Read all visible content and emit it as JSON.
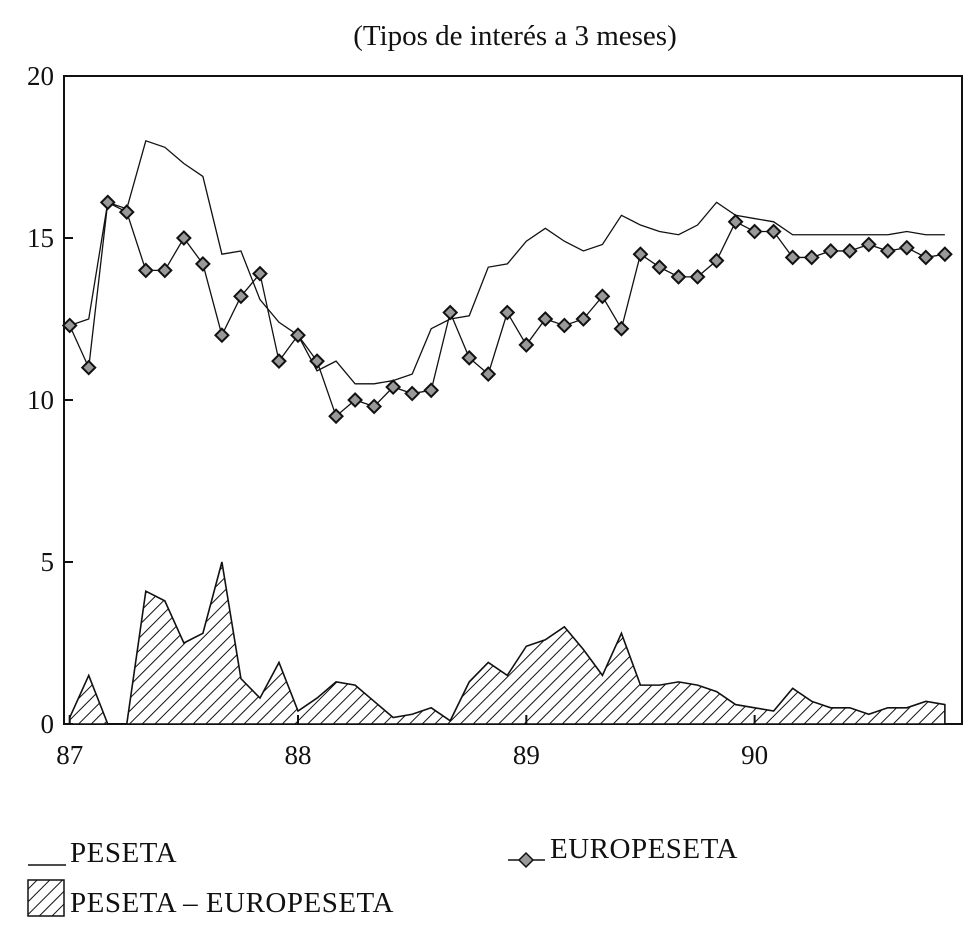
{
  "chart_data": {
    "type": "line",
    "title": "(Tipos de interés a 3 meses)",
    "xlabel": "",
    "ylabel": "",
    "ylim": [
      0,
      20
    ],
    "yticks": [
      0,
      5,
      10,
      15,
      20
    ],
    "x_tick_labels": [
      "87",
      "88",
      "89",
      "90"
    ],
    "x_tick_positions": [
      0,
      12,
      24,
      36
    ],
    "xlim": [
      -0.3,
      46.9
    ],
    "x_months": [
      0,
      1,
      2,
      3,
      4,
      5,
      6,
      7,
      8,
      9,
      10,
      11,
      12,
      13,
      14,
      15,
      16,
      17,
      18,
      19,
      20,
      21,
      22,
      23,
      24,
      25,
      26,
      27,
      28,
      29,
      30,
      31,
      32,
      33,
      34,
      35,
      36,
      37,
      38,
      39,
      40,
      41,
      42,
      43,
      44,
      45,
      46
    ],
    "series": [
      {
        "name": "PESETA",
        "style": "line",
        "values": [
          12.3,
          12.5,
          16.1,
          15.9,
          18.0,
          17.8,
          17.3,
          16.9,
          14.5,
          14.6,
          13.1,
          12.4,
          12.0,
          10.9,
          11.2,
          10.5,
          10.5,
          10.6,
          10.8,
          12.2,
          12.5,
          12.6,
          14.1,
          14.2,
          14.9,
          15.3,
          14.9,
          14.6,
          14.8,
          15.7,
          15.4,
          15.2,
          15.1,
          15.4,
          16.1,
          15.7,
          15.6,
          15.5,
          15.1,
          15.1,
          15.1,
          15.1,
          15.1,
          15.1,
          15.2,
          15.1,
          15.1
        ]
      },
      {
        "name": "EUROPESETA",
        "style": "line-markers",
        "values": [
          12.3,
          11.0,
          16.1,
          15.8,
          14.0,
          14.0,
          15.0,
          14.2,
          12.0,
          13.2,
          13.9,
          11.2,
          12.0,
          11.2,
          9.5,
          10.0,
          9.8,
          10.4,
          10.2,
          10.3,
          12.7,
          11.3,
          10.8,
          12.7,
          11.7,
          12.5,
          12.3,
          12.5,
          13.2,
          12.2,
          14.5,
          14.1,
          13.8,
          13.8,
          14.3,
          15.5,
          15.2,
          15.2,
          14.4,
          14.4,
          14.6,
          14.6,
          14.8,
          14.6,
          14.7,
          14.4,
          14.5
        ]
      },
      {
        "name": "PESETA – EUROPESETA",
        "style": "hatched-area",
        "values": [
          0.2,
          1.5,
          0.0,
          0.0,
          4.1,
          3.8,
          2.5,
          2.8,
          5.0,
          1.4,
          0.8,
          1.9,
          0.4,
          0.8,
          1.3,
          1.2,
          0.7,
          0.2,
          0.3,
          0.5,
          0.1,
          1.3,
          1.9,
          1.5,
          2.4,
          2.6,
          3.0,
          2.3,
          1.5,
          2.8,
          1.2,
          1.2,
          1.3,
          1.2,
          1.0,
          0.6,
          0.5,
          0.4,
          1.1,
          0.7,
          0.5,
          0.5,
          0.3,
          0.5,
          0.5,
          0.7,
          0.6
        ]
      }
    ],
    "legend_placement": "bottom",
    "grid": false
  },
  "colors": {
    "ink": "#111111",
    "marker_fill": "#999999",
    "background": "#ffffff"
  }
}
